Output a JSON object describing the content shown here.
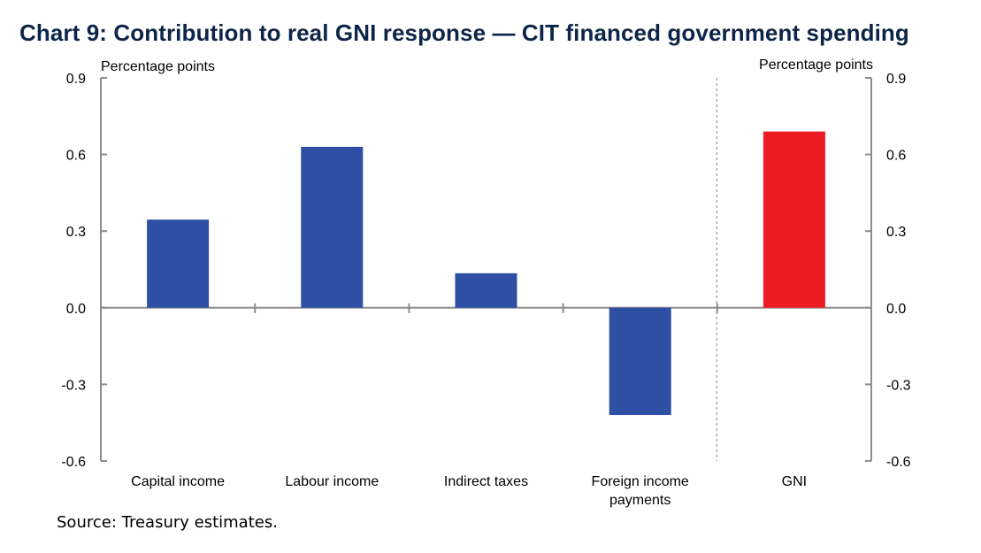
{
  "chart_data": {
    "type": "bar",
    "title": "Chart 9: Contribution to real GNI response — CIT financed government spending",
    "ylabel_left": "Percentage points",
    "ylabel_right": "Percentage points",
    "ylim": [
      -0.6,
      0.9
    ],
    "yticks": [
      "0.9",
      "0.6",
      "0.3",
      "0.0",
      "-0.3",
      "-0.6"
    ],
    "ytick_values": [
      0.9,
      0.6,
      0.3,
      0.0,
      -0.3,
      -0.6
    ],
    "categories": [
      [
        "Capital income"
      ],
      [
        "Labour income"
      ],
      [
        "Indirect taxes"
      ],
      [
        "Foreign income",
        "payments"
      ],
      [
        "GNI"
      ]
    ],
    "values": [
      0.345,
      0.63,
      0.135,
      -0.42,
      0.69
    ],
    "colors": [
      "#2e4fa3",
      "#2e4fa3",
      "#2e4fa3",
      "#2e4fa3",
      "#ed1c24"
    ],
    "grid": false,
    "separator_before_index": 4
  },
  "source": "Source: Treasury estimates."
}
